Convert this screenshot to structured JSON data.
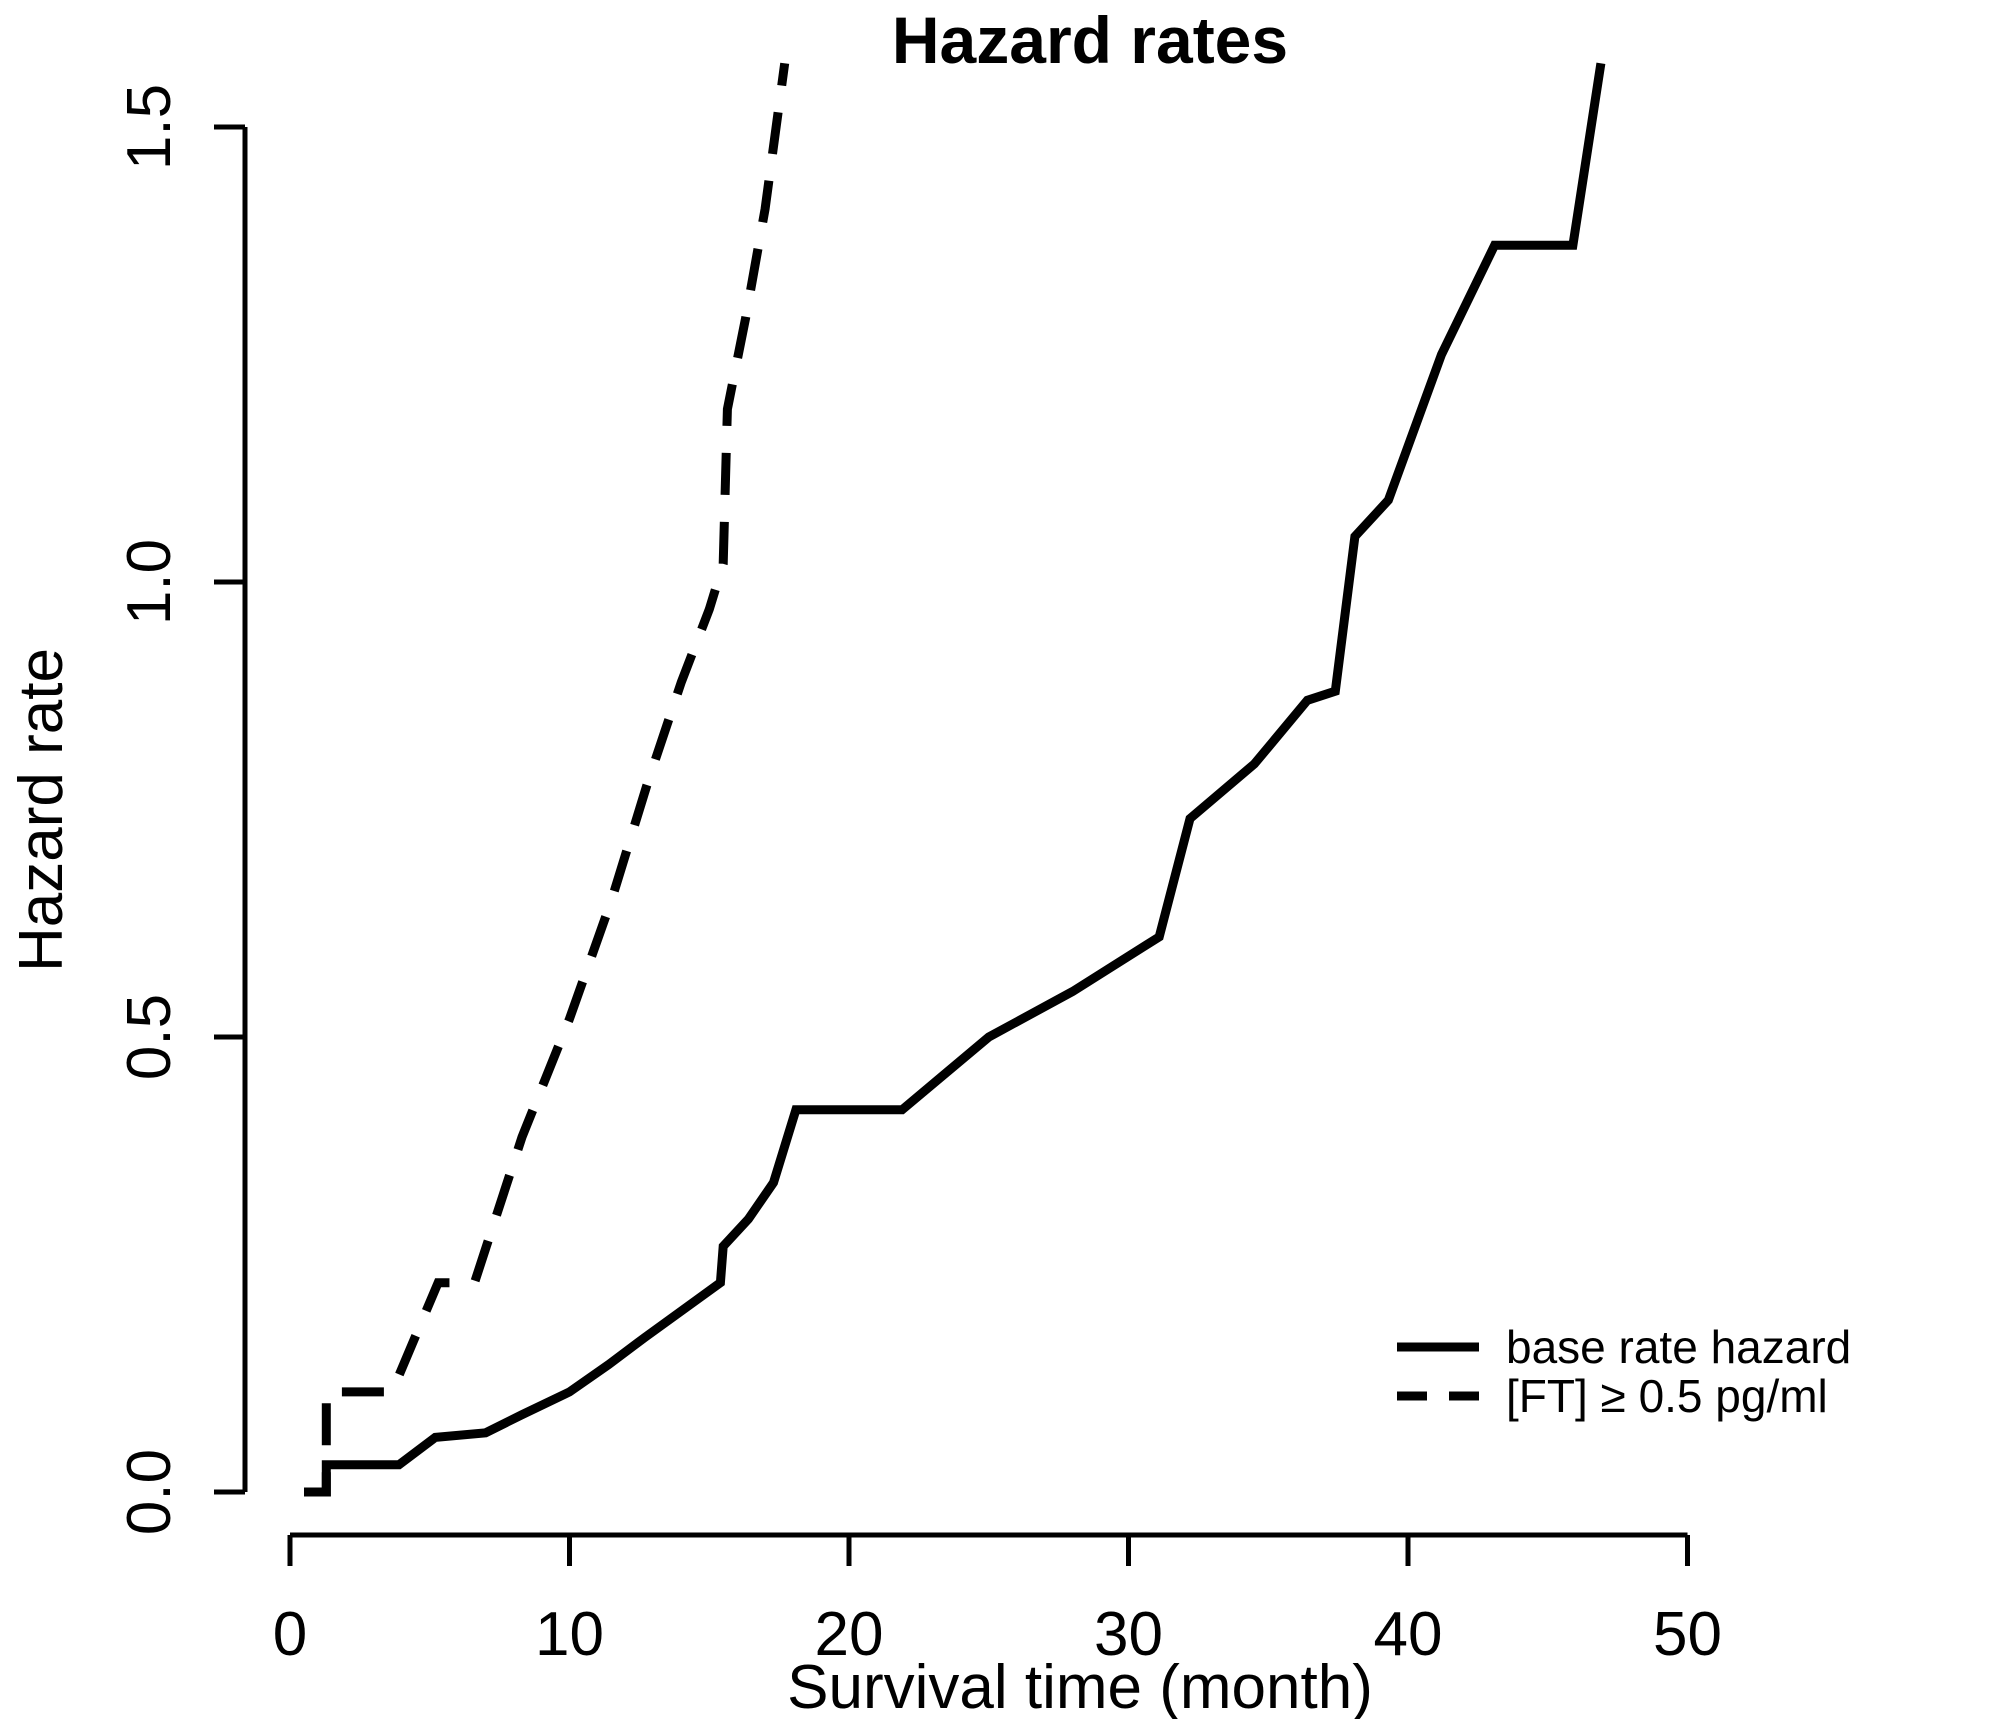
{
  "chart_data": {
    "type": "line",
    "title": "Hazard rates",
    "xlabel": "Survival time (month)",
    "ylabel": "Hazard rate",
    "xlim": [
      0,
      50
    ],
    "ylim": [
      0,
      1.5
    ],
    "xticks": [
      0,
      10,
      20,
      30,
      40,
      50
    ],
    "ytick_labels": [
      "0.0",
      "0.5",
      "1.0",
      "1.5"
    ],
    "ytick_values": [
      0.0,
      0.5,
      1.0,
      1.5
    ],
    "grid": false,
    "background_color": "#ffffff",
    "line_color": "#000000",
    "legend_position": "bottom-right",
    "series": [
      {
        "name": "base rate hazard",
        "style": "solid",
        "color": "#000000",
        "points": [
          [
            0.5,
            0.0
          ],
          [
            1.3,
            0.0
          ],
          [
            1.3,
            0.03
          ],
          [
            3.9,
            0.03
          ],
          [
            5.2,
            0.06
          ],
          [
            7.0,
            0.065
          ],
          [
            8.3,
            0.085
          ],
          [
            10.0,
            0.11
          ],
          [
            11.4,
            0.14
          ],
          [
            12.7,
            0.17
          ],
          [
            14.5,
            0.21
          ],
          [
            15.4,
            0.23
          ],
          [
            15.5,
            0.27
          ],
          [
            16.4,
            0.3
          ],
          [
            17.3,
            0.34
          ],
          [
            18.1,
            0.42
          ],
          [
            21.9,
            0.42
          ],
          [
            25.0,
            0.5
          ],
          [
            28.0,
            0.55
          ],
          [
            31.1,
            0.61
          ],
          [
            32.2,
            0.74
          ],
          [
            34.5,
            0.8
          ],
          [
            36.4,
            0.87
          ],
          [
            37.4,
            0.88
          ],
          [
            38.1,
            1.05
          ],
          [
            39.3,
            1.09
          ],
          [
            41.2,
            1.25
          ],
          [
            43.1,
            1.37
          ],
          [
            45.9,
            1.37
          ],
          [
            46.9,
            1.57
          ]
        ]
      },
      {
        "name": "[FT] ≥ 0.5 pg/ml",
        "style": "dashed",
        "color": "#000000",
        "points": [
          [
            0.5,
            0.0
          ],
          [
            1.3,
            0.0
          ],
          [
            1.3,
            0.11
          ],
          [
            3.65,
            0.11
          ],
          [
            5.3,
            0.23
          ],
          [
            6.6,
            0.23
          ],
          [
            8.3,
            0.39
          ],
          [
            10.0,
            0.52
          ],
          [
            11.5,
            0.65
          ],
          [
            12.8,
            0.78
          ],
          [
            14.0,
            0.89
          ],
          [
            15.0,
            0.97
          ],
          [
            15.5,
            1.02
          ],
          [
            15.65,
            1.19
          ],
          [
            16.3,
            1.29
          ],
          [
            17.0,
            1.41
          ],
          [
            17.7,
            1.57
          ]
        ]
      }
    ]
  }
}
